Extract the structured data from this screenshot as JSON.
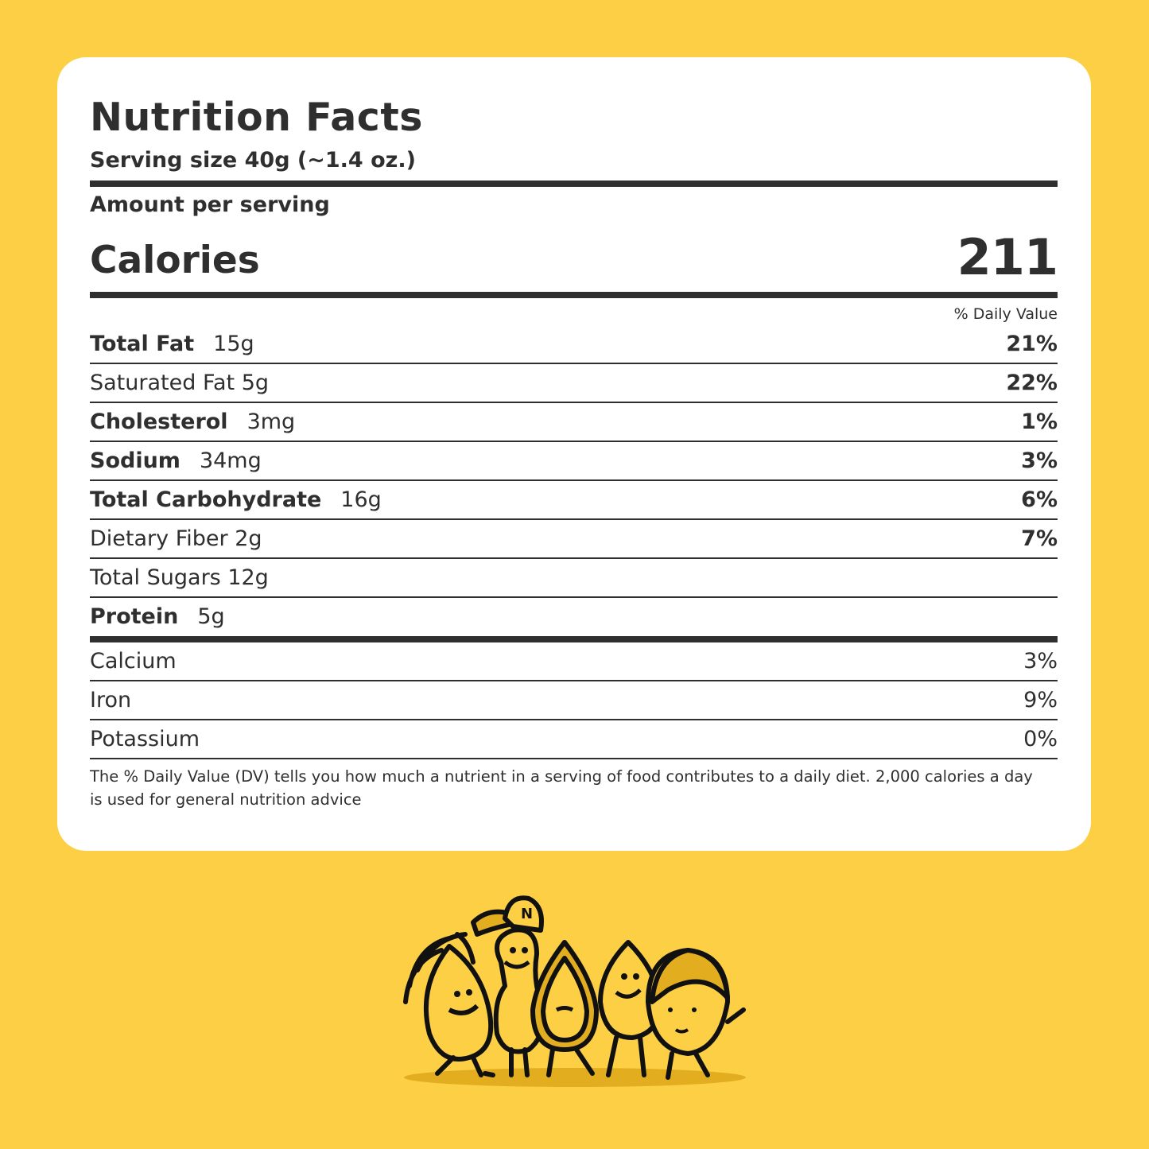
{
  "label": {
    "title": "Nutrition Facts",
    "serving_size": "Serving size 40g (~1.4 oz.)",
    "amount_per_serving": "Amount per serving",
    "calories_label": "Calories",
    "calories_value": "211",
    "daily_value_header": "% Daily Value",
    "nutrients": [
      {
        "name": "Total Fat",
        "amount": "15g",
        "dv": "21%",
        "bold": true
      },
      {
        "name": "Saturated Fat 5g",
        "amount": "",
        "dv": "22%",
        "bold": false
      },
      {
        "name": "Cholesterol",
        "amount": "3mg",
        "dv": "1%",
        "bold": true
      },
      {
        "name": "Sodium",
        "amount": "34mg",
        "dv": "3%",
        "bold": true
      },
      {
        "name": "Total Carbohydrate",
        "amount": "16g",
        "dv": "6%",
        "bold": true
      },
      {
        "name": "Dietary Fiber 2g",
        "amount": "",
        "dv": "7%",
        "bold": false
      },
      {
        "name": "Total Sugars 12g",
        "amount": "",
        "dv": "",
        "bold": false
      },
      {
        "name": "Protein",
        "amount": "5g",
        "dv": "",
        "bold": true
      }
    ],
    "minerals": [
      {
        "name": "Calcium",
        "dv": "3%"
      },
      {
        "name": "Iron",
        "dv": "9%"
      },
      {
        "name": "Potassium",
        "dv": "0%"
      }
    ],
    "footnote": "The % Daily Value (DV) tells you how much a nutrient in a serving of food contributes to a daily diet. 2,000 calories a day is used for general nutrition advice"
  },
  "illustration": {
    "name": "nut-mascots",
    "cap_letter": "N"
  },
  "colors": {
    "background": "#fdcf45",
    "card": "#ffffff",
    "text": "#2f2f2f",
    "mascot_shade": "#e2ae1f"
  }
}
